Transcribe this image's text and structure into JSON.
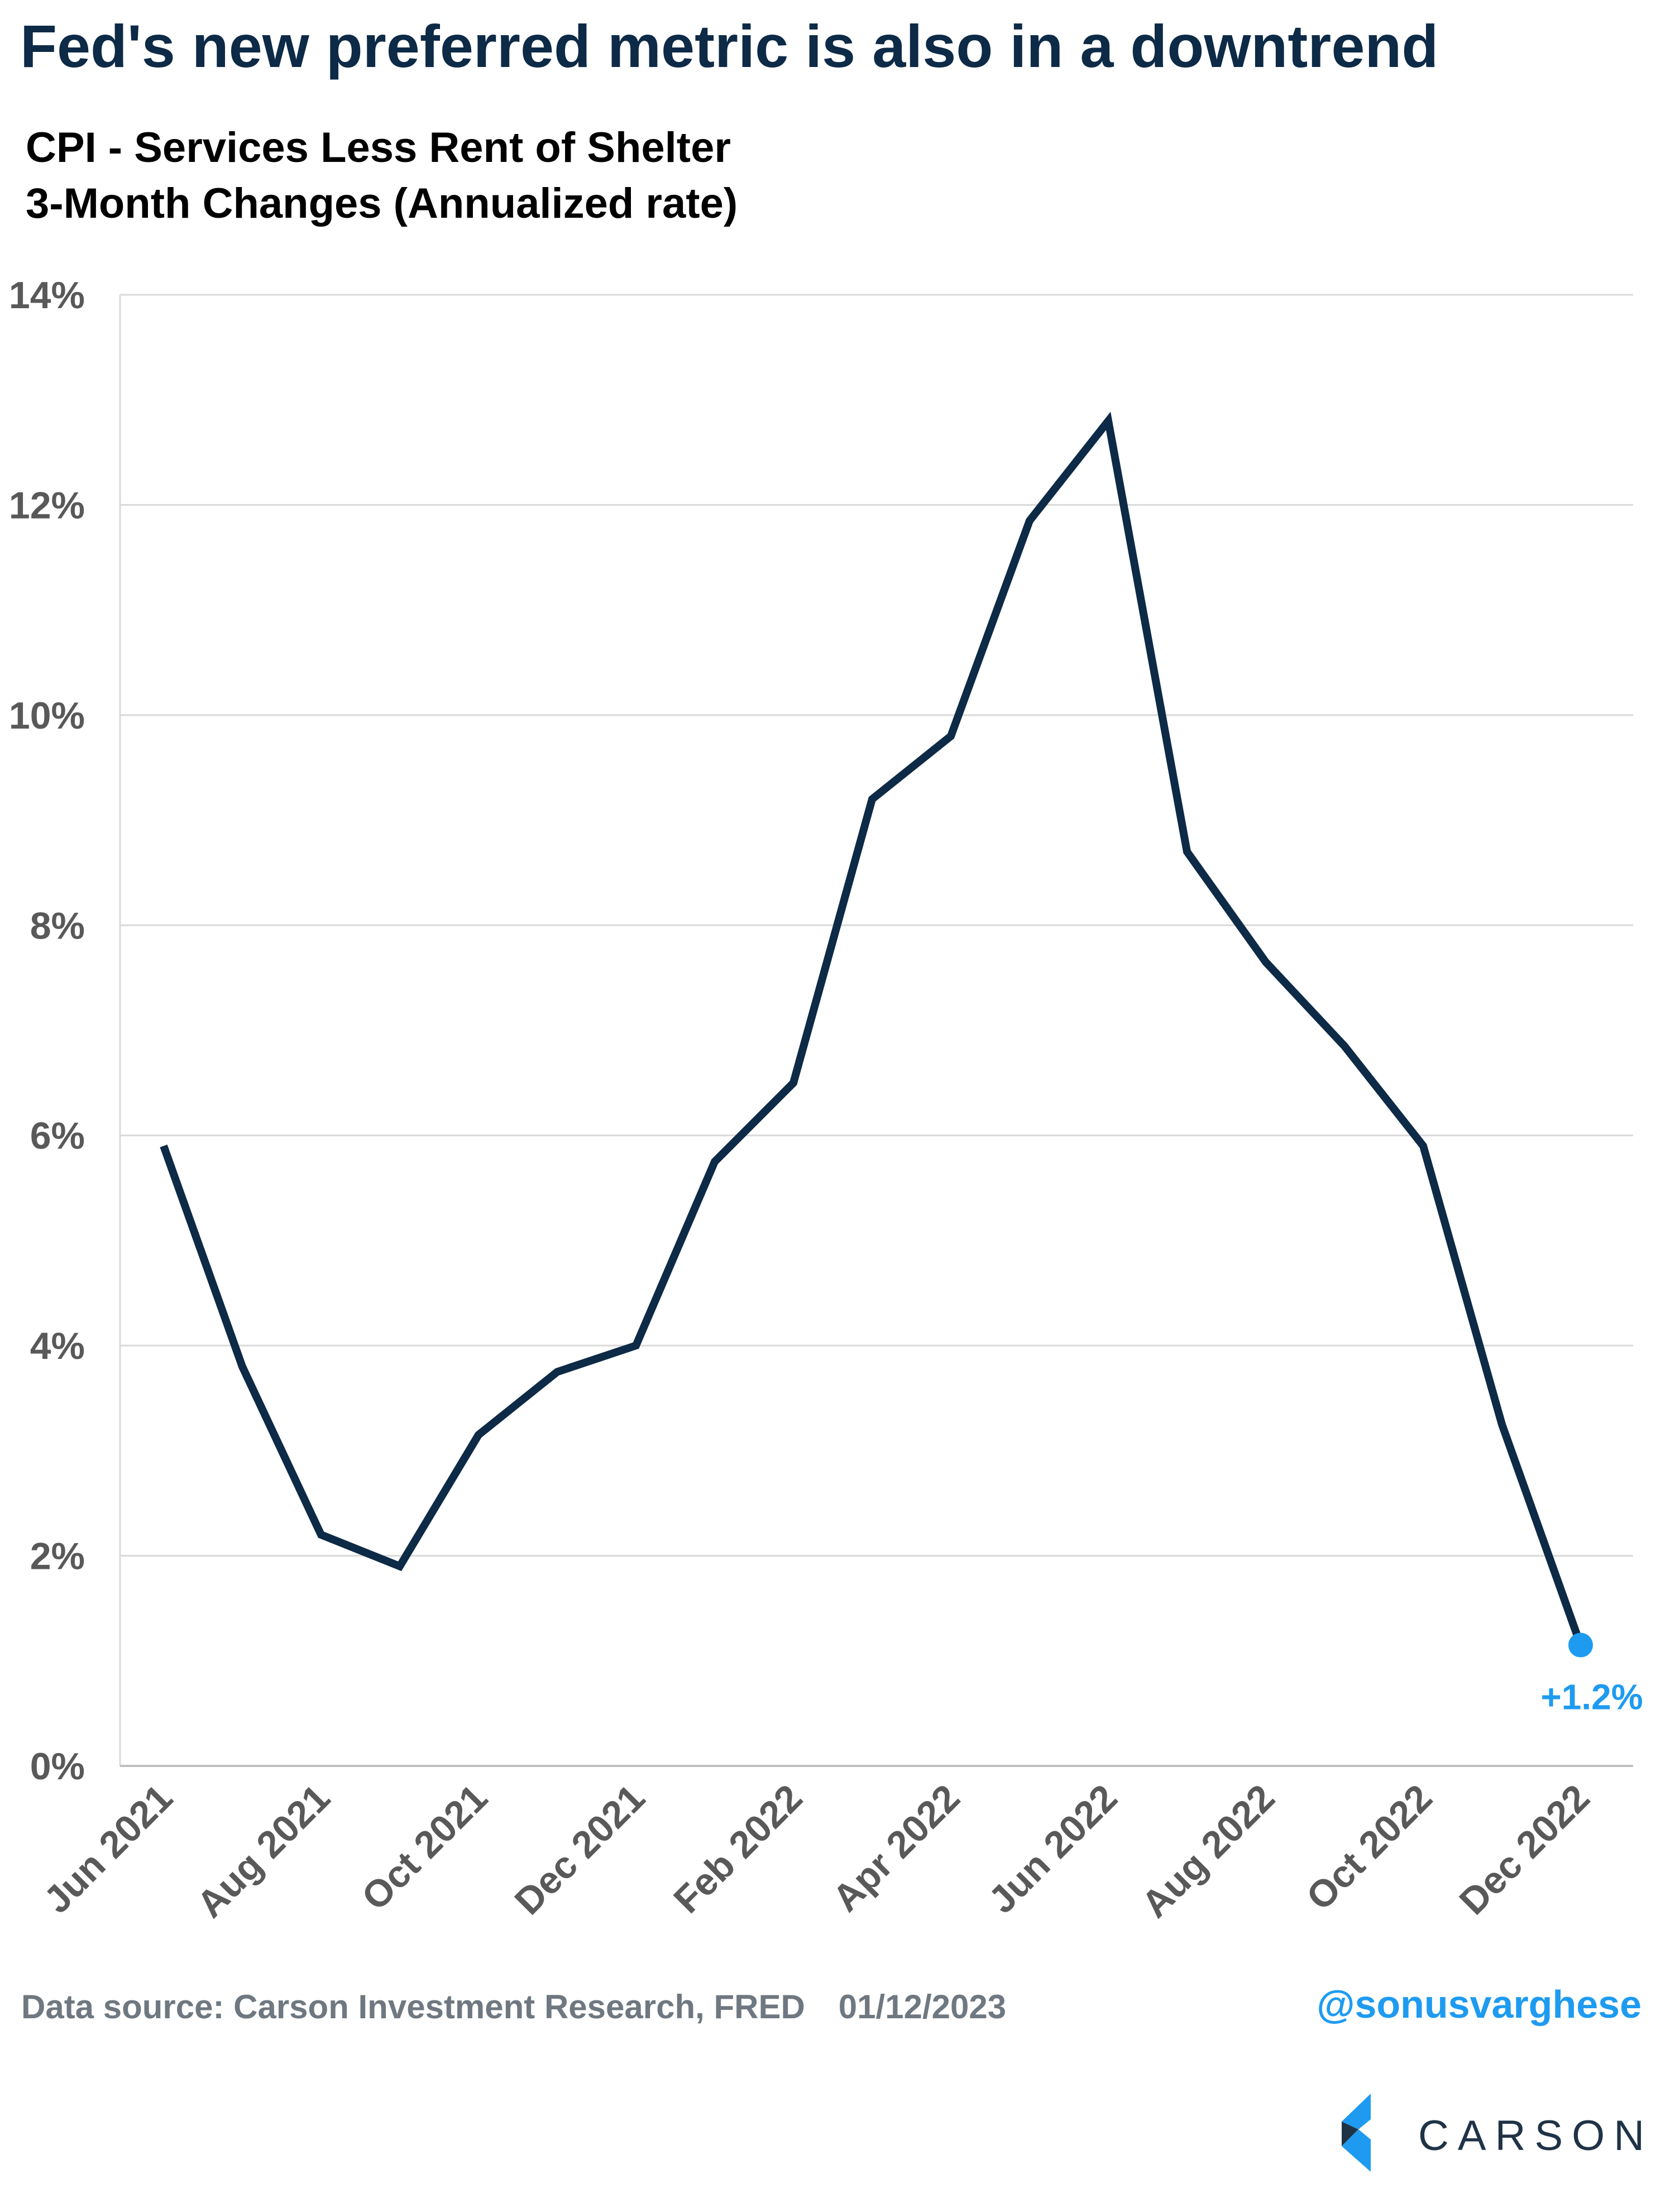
{
  "title": "Fed's new preferred metric is also in a downtrend",
  "subtitle_line1": "CPI - Services Less Rent of Shelter",
  "subtitle_line2": "3-Month Changes (Annualized rate)",
  "footer": {
    "source": "Data source: Carson Investment Research, FRED",
    "date": "01/12/2023",
    "handle": "@sonusvarghese"
  },
  "brand": {
    "name": "CARSON",
    "icon": "carson-logo-icon"
  },
  "colors": {
    "line": "#0d2a47",
    "highlight": "#1e9bf0",
    "grid": "#d9d9d9",
    "tick_text": "#595959"
  },
  "chart_data": {
    "type": "line",
    "x": [
      "Jun 2021",
      "Jul 2021",
      "Aug 2021",
      "Sep 2021",
      "Oct 2021",
      "Nov 2021",
      "Dec 2021",
      "Jan 2022",
      "Feb 2022",
      "Mar 2022",
      "Apr 2022",
      "May 2022",
      "Jun 2022",
      "Jul 2022",
      "Aug 2022",
      "Sep 2022",
      "Oct 2022",
      "Nov 2022",
      "Dec 2022"
    ],
    "series": [
      {
        "values": [
          5.9,
          3.8,
          2.2,
          1.9,
          3.15,
          3.75,
          4.0,
          5.75,
          6.5,
          9.2,
          9.8,
          11.85,
          12.8,
          8.7,
          7.65,
          6.85,
          5.9,
          3.25,
          1.15
        ]
      }
    ],
    "x_tick_labels": [
      "Jun 2021",
      "Aug 2021",
      "Oct 2021",
      "Dec 2021",
      "Feb 2022",
      "Apr 2022",
      "Jun 2022",
      "Aug 2022",
      "Oct 2022",
      "Dec 2022"
    ],
    "y_ticks": [
      "0%",
      "2%",
      "4%",
      "6%",
      "8%",
      "10%",
      "12%",
      "14%"
    ],
    "ylim": [
      0,
      14
    ],
    "xlabel": "",
    "ylabel": "",
    "grid": true,
    "legend": "none",
    "annotation": {
      "label": "+1.2%",
      "x": "Dec 2022",
      "value": 1.15
    }
  }
}
